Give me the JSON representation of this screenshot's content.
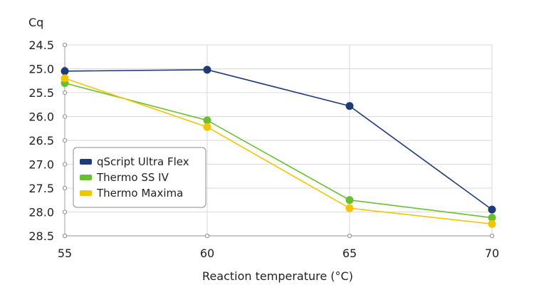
{
  "chart_data": {
    "type": "line",
    "title": "",
    "xlabel": "Reaction temperature (°C)",
    "ylabel": "Cq",
    "x": [
      55,
      60,
      65,
      70
    ],
    "x_ticks": [
      "55",
      "60",
      "65",
      "70"
    ],
    "xlim": [
      55,
      70
    ],
    "ylim": [
      24.5,
      28.5
    ],
    "y_inverted": true,
    "y_ticks": [
      "24.5",
      "25.0",
      "25.5",
      "26.0",
      "26.5",
      "27.0",
      "27.5",
      "28.0",
      "28.5"
    ],
    "grid": true,
    "legend_position": "center-left",
    "series": [
      {
        "name": "qScript Ultra Flex",
        "color": "#1f3b77",
        "values": [
          25.05,
          25.02,
          25.78,
          27.95
        ]
      },
      {
        "name": "Thermo SS IV",
        "color": "#6abf2e",
        "values": [
          25.3,
          26.08,
          27.75,
          28.12
        ]
      },
      {
        "name": "Thermo Maxima",
        "color": "#f5c400",
        "values": [
          25.2,
          26.22,
          27.92,
          28.25
        ]
      }
    ]
  }
}
